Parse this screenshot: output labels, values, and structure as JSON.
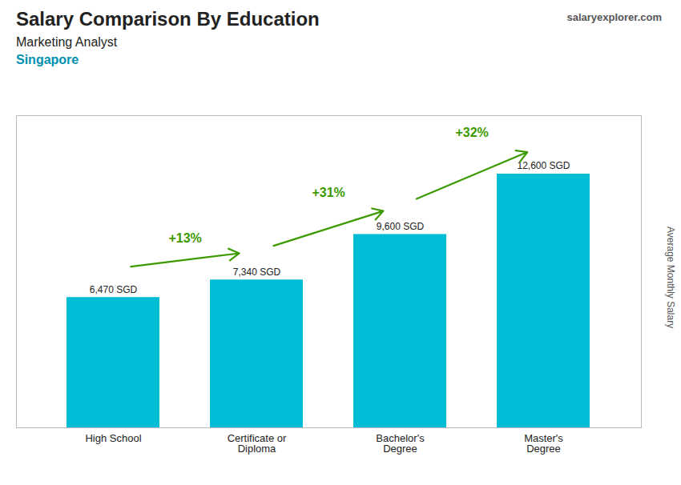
{
  "chart_data": {
    "type": "bar",
    "title": "Salary Comparison By Education",
    "subtitle": "Marketing Analyst",
    "location": "Singapore",
    "watermark": "salaryexplorer.com",
    "categories": [
      "High School",
      "Certificate or\nDiploma",
      "Bachelor's\nDegree",
      "Master's\nDegree"
    ],
    "values": [
      6470,
      7340,
      9600,
      12600
    ],
    "value_labels": [
      "6,470 SGD",
      "7,340 SGD",
      "9,600 SGD",
      "12,600 SGD"
    ],
    "data_labels": true,
    "annotations": [
      "+13%",
      "+31%",
      "+32%"
    ],
    "ylabel": "Average Monthly Salary",
    "color": "#00bcd4",
    "ylim": [
      0,
      15500
    ],
    "tick_labels": "x"
  }
}
